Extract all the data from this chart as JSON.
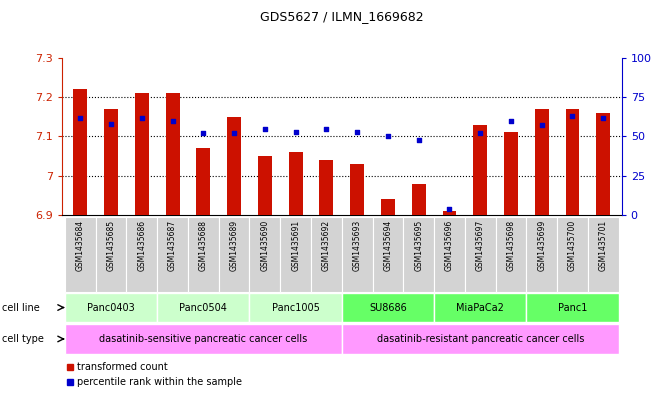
{
  "title": "GDS5627 / ILMN_1669682",
  "samples": [
    "GSM1435684",
    "GSM1435685",
    "GSM1435686",
    "GSM1435687",
    "GSM1435688",
    "GSM1435689",
    "GSM1435690",
    "GSM1435691",
    "GSM1435692",
    "GSM1435693",
    "GSM1435694",
    "GSM1435695",
    "GSM1435696",
    "GSM1435697",
    "GSM1435698",
    "GSM1435699",
    "GSM1435700",
    "GSM1435701"
  ],
  "transformed_count": [
    7.22,
    7.17,
    7.21,
    7.21,
    7.07,
    7.15,
    7.05,
    7.06,
    7.04,
    7.03,
    6.94,
    6.98,
    6.91,
    7.13,
    7.11,
    7.17,
    7.17,
    7.16
  ],
  "percentile_rank": [
    62,
    58,
    62,
    60,
    52,
    52,
    55,
    53,
    55,
    53,
    50,
    48,
    4,
    52,
    60,
    57,
    63,
    62
  ],
  "ylim_left": [
    6.9,
    7.3
  ],
  "ylim_right": [
    0,
    100
  ],
  "yticks_left": [
    6.9,
    7.0,
    7.1,
    7.2,
    7.3
  ],
  "ytick_labels_left": [
    "6.9",
    "7",
    "7.1",
    "7.2",
    "7.3"
  ],
  "yticks_right": [
    0,
    25,
    50,
    75,
    100
  ],
  "ytick_labels_right": [
    "0",
    "25",
    "50",
    "75",
    "100%"
  ],
  "cell_lines": [
    {
      "label": "Panc0403",
      "start": 0,
      "end": 3,
      "color": "#ccffcc"
    },
    {
      "label": "Panc0504",
      "start": 3,
      "end": 6,
      "color": "#ccffcc"
    },
    {
      "label": "Panc1005",
      "start": 6,
      "end": 9,
      "color": "#ccffcc"
    },
    {
      "label": "SU8686",
      "start": 9,
      "end": 12,
      "color": "#66ff66"
    },
    {
      "label": "MiaPaCa2",
      "start": 12,
      "end": 15,
      "color": "#66ff66"
    },
    {
      "label": "Panc1",
      "start": 15,
      "end": 18,
      "color": "#66ff66"
    }
  ],
  "cell_types": [
    {
      "label": "dasatinib-sensitive pancreatic cancer cells",
      "start": 0,
      "end": 9,
      "color": "#ff99ff"
    },
    {
      "label": "dasatinib-resistant pancreatic cancer cells",
      "start": 9,
      "end": 18,
      "color": "#ff99ff"
    }
  ],
  "bar_color": "#cc1100",
  "dot_color": "#0000cc",
  "left_axis_color": "#cc2200",
  "right_axis_color": "#0000cc",
  "grid_yticks": [
    7.0,
    7.1,
    7.2
  ]
}
